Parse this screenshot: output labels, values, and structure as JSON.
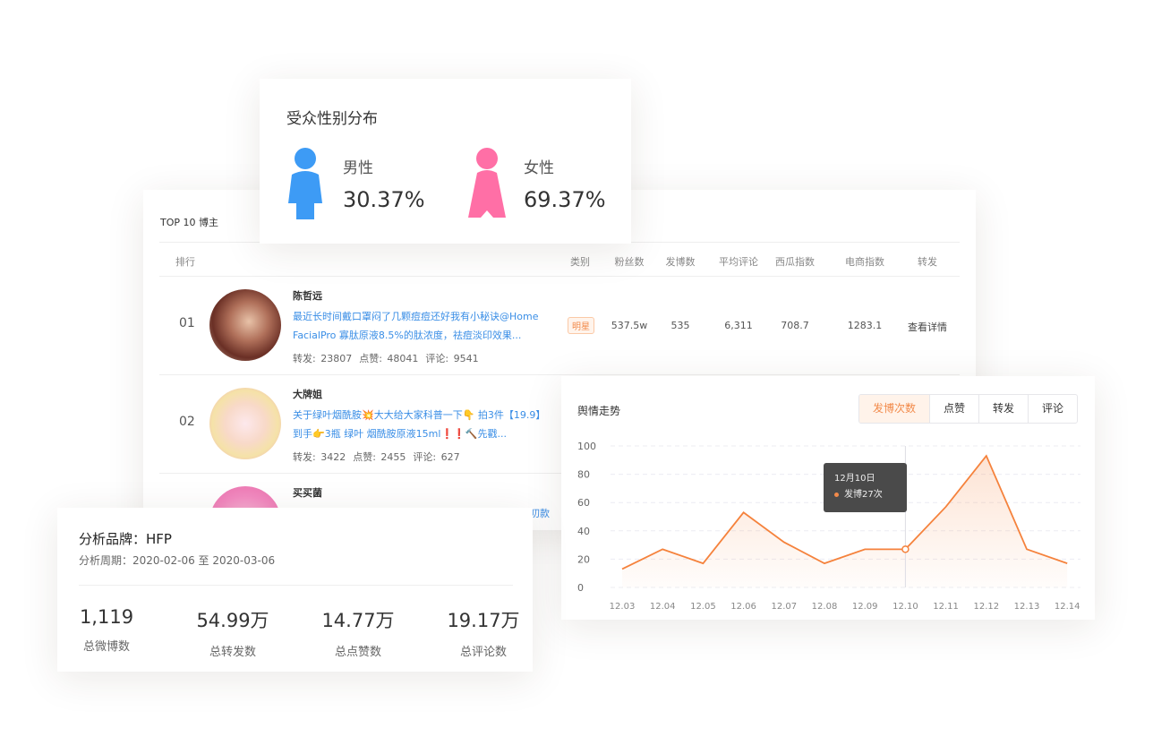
{
  "gender": {
    "title": "受众性别分布",
    "male": {
      "label": "男性",
      "value": "30.37%",
      "color": "#3d9bf5"
    },
    "female": {
      "label": "女性",
      "value": "69.37%",
      "color": "#ff6fa6"
    }
  },
  "top10": {
    "title": "TOP 10 博主",
    "headers": [
      "排行",
      "类别",
      "粉丝数",
      "发博数",
      "平均评论",
      "西瓜指数",
      "电商指数",
      "转发"
    ],
    "rows": [
      {
        "rank": "01",
        "name": "陈哲远",
        "post": "最近长时间戴口罩闷了几颗痘痘还好我有小秘诀@Home FacialPro 寡肽原液8.5%的肽浓度，祛痘淡印效果...",
        "reposts": "转发: 23807",
        "likes": "点赞: 48041",
        "comments": "评论: 9541",
        "category": "明星",
        "fans": "537.5w",
        "posts": "535",
        "avg_comments": "6,311",
        "xigua": "708.7",
        "ecom": "1283.1",
        "action": "查看详情"
      },
      {
        "rank": "02",
        "name": "大牌姐",
        "post": "关于绿叶烟酰胺💥大大给大家科普一下👇 拍3件【19.9】到手👉3瓶 绿叶 烟酰胺原液15ml❗❗🔨先戳...",
        "reposts": "转发: 3422",
        "likes": "点赞: 2455",
        "comments": "评论: 627"
      },
      {
        "rank": "",
        "name": "买买菌",
        "post_fragment": "叨款"
      }
    ]
  },
  "trend": {
    "title": "舆情走势",
    "tabs": [
      "发博次数",
      "点赞",
      "转发",
      "评论"
    ],
    "active_tab": "发博次数",
    "tooltip": {
      "date": "12月10日",
      "text": "发博27次"
    }
  },
  "brand": {
    "title": "分析品牌：HFP",
    "period": "分析周期：2020-02-06 至 2020-03-06",
    "kpis": [
      {
        "value": "1,119",
        "label": "总微博数"
      },
      {
        "value": "54.99万",
        "label": "总转发数"
      },
      {
        "value": "14.77万",
        "label": "总点赞数"
      },
      {
        "value": "19.17万",
        "label": "总评论数"
      }
    ]
  },
  "chart_data": {
    "type": "area",
    "title": "舆情走势",
    "categories": [
      "12.03",
      "12.04",
      "12.05",
      "12.06",
      "12.07",
      "12.08",
      "12.09",
      "12.10",
      "12.11",
      "12.12",
      "12.13",
      "12.14"
    ],
    "series": [
      {
        "values": [
          13,
          27,
          17,
          53,
          32,
          17,
          27,
          27,
          57,
          93,
          27,
          17
        ]
      }
    ],
    "ylim": [
      0,
      100
    ],
    "yticks": [
      0,
      20,
      40,
      60,
      80,
      100
    ],
    "grid": true,
    "highlight_index": 7,
    "color": "#f5823c"
  }
}
